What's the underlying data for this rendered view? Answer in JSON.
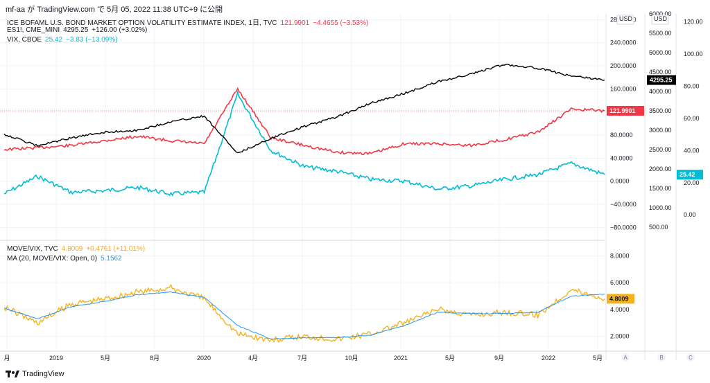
{
  "header": {
    "text": "mf-aa が TradingView.com で 5月 05, 2022 11:38 UTC+9 に公開"
  },
  "legend": [
    {
      "name": "ICE BOFAML U.S. BOND MARKET OPTION VOLATILITY ESTIMATE INDEX, 1日, TVC",
      "value": "121.9901",
      "change": "−4.4655 (−3.53%)",
      "color": "#f23645"
    },
    {
      "name": "ES1!, CME_MINI",
      "value": "4295.25",
      "change": "+126.00 (+3.02%)",
      "color": "#131722"
    },
    {
      "name": "VIX, CBOE",
      "value": "25.42",
      "change": "−3.83 (−13.09%)",
      "color": "#00bcd4"
    }
  ],
  "lower_legend": [
    {
      "name": "MOVE/VIX, TVC",
      "value": "4.8009",
      "change": "+0.4761 (+11.01%)",
      "color": "#f5a623"
    },
    {
      "name": "MA (20, MOVE/VIX: Open, 0)",
      "value": "5.1562",
      "change": "",
      "color": "#2196f3"
    }
  ],
  "scales": {
    "currency_label": "USD",
    "a_ticks": [
      "280.0000",
      "240.0000",
      "200.0000",
      "160.0000",
      "120.0000",
      "80.0000",
      "40.0000",
      "0.0000",
      "−40.0000",
      "−80.0000"
    ],
    "b_ticks": [
      "6000.00",
      "5500.00",
      "5000.00",
      "4500.00",
      "4000.00",
      "3500.00",
      "3000.00",
      "2500.00",
      "2000.00",
      "1500.00",
      "1000.00",
      "500.00"
    ],
    "c_ticks": [
      "120.00",
      "100.00",
      "80.00",
      "60.00",
      "40.00",
      "20.00",
      "0.00"
    ],
    "lower_ticks": [
      "8.0000",
      "6.0000",
      "4.0000",
      "2.0000"
    ],
    "badges": {
      "move": "121.9901",
      "es": "4295.25",
      "vix": "25.42",
      "ratio": "4.8009"
    },
    "pane_labels": [
      "A",
      "B",
      "C"
    ]
  },
  "x_axis": [
    "月",
    "2019",
    "5月",
    "8月",
    "2020",
    "4月",
    "7月",
    "10月",
    "2021",
    "5月",
    "9月",
    "2022",
    "5月"
  ],
  "footer": {
    "brand": "TradingView"
  },
  "colors": {
    "move": "#f23645",
    "es": "#000000",
    "vix": "#00bcd4",
    "ratio": "#f5b21a",
    "ma": "#2196f3",
    "grid": "#f0f3fa",
    "axis": "#e0e3eb"
  },
  "chart_data": [
    {
      "type": "line",
      "title": "",
      "x": [
        "2018-09",
        "2018-12",
        "2019-03",
        "2019-06",
        "2019-09",
        "2019-12",
        "2020-02",
        "2020-03",
        "2020-04",
        "2020-06",
        "2020-09",
        "2020-12",
        "2021-03",
        "2021-06",
        "2021-09",
        "2021-12",
        "2022-01",
        "2022-03",
        "2022-05"
      ],
      "series": [
        {
          "name": "ICE BOFAML U.S. BOND MARKET OPTION VOLATILITY ESTIMATE INDEX, 1日, TVC",
          "axis": "A",
          "values": [
            55,
            58,
            62,
            70,
            78,
            70,
            65,
            160,
            75,
            62,
            50,
            48,
            65,
            65,
            62,
            72,
            85,
            125,
            122
          ]
        },
        {
          "name": "ES1!, CME_MINI",
          "axis": "B",
          "values": [
            2900,
            2600,
            2800,
            2950,
            3000,
            3220,
            3370,
            2400,
            2800,
            3100,
            3350,
            3700,
            3950,
            4250,
            4450,
            4700,
            4600,
            4400,
            4295
          ]
        },
        {
          "name": "VIX, CBOE",
          "axis": "C",
          "values": [
            13,
            24,
            14,
            15,
            17,
            13,
            14,
            75,
            40,
            30,
            27,
            22,
            21,
            16,
            18,
            22,
            25,
            32,
            25
          ]
        }
      ],
      "ylim_A": [
        -100,
        290
      ],
      "ylim_B": [
        200,
        6000
      ],
      "ylim_C": [
        -15,
        125
      ]
    },
    {
      "type": "line",
      "title": "",
      "x": [
        "2018-09",
        "2018-12",
        "2019-03",
        "2019-06",
        "2019-09",
        "2019-12",
        "2020-02",
        "2020-03",
        "2020-04",
        "2020-06",
        "2020-09",
        "2020-12",
        "2021-03",
        "2021-06",
        "2021-09",
        "2021-12",
        "2022-01",
        "2022-03",
        "2022-05"
      ],
      "series": [
        {
          "name": "MOVE/VIX, TVC",
          "values": [
            4.2,
            3.0,
            4.4,
            4.8,
            5.3,
            5.6,
            4.8,
            2.2,
            1.7,
            2.0,
            1.8,
            2.2,
            3.0,
            4.0,
            3.6,
            3.8,
            3.6,
            5.5,
            4.8
          ]
        },
        {
          "name": "MA (20, MOVE/VIX: Open, 0)",
          "values": [
            4.1,
            3.3,
            4.2,
            4.6,
            5.1,
            5.3,
            4.9,
            2.8,
            1.8,
            1.9,
            1.9,
            2.1,
            2.8,
            3.8,
            3.7,
            3.7,
            3.8,
            5.0,
            5.16
          ]
        }
      ],
      "ylim": [
        1,
        9
      ]
    }
  ]
}
